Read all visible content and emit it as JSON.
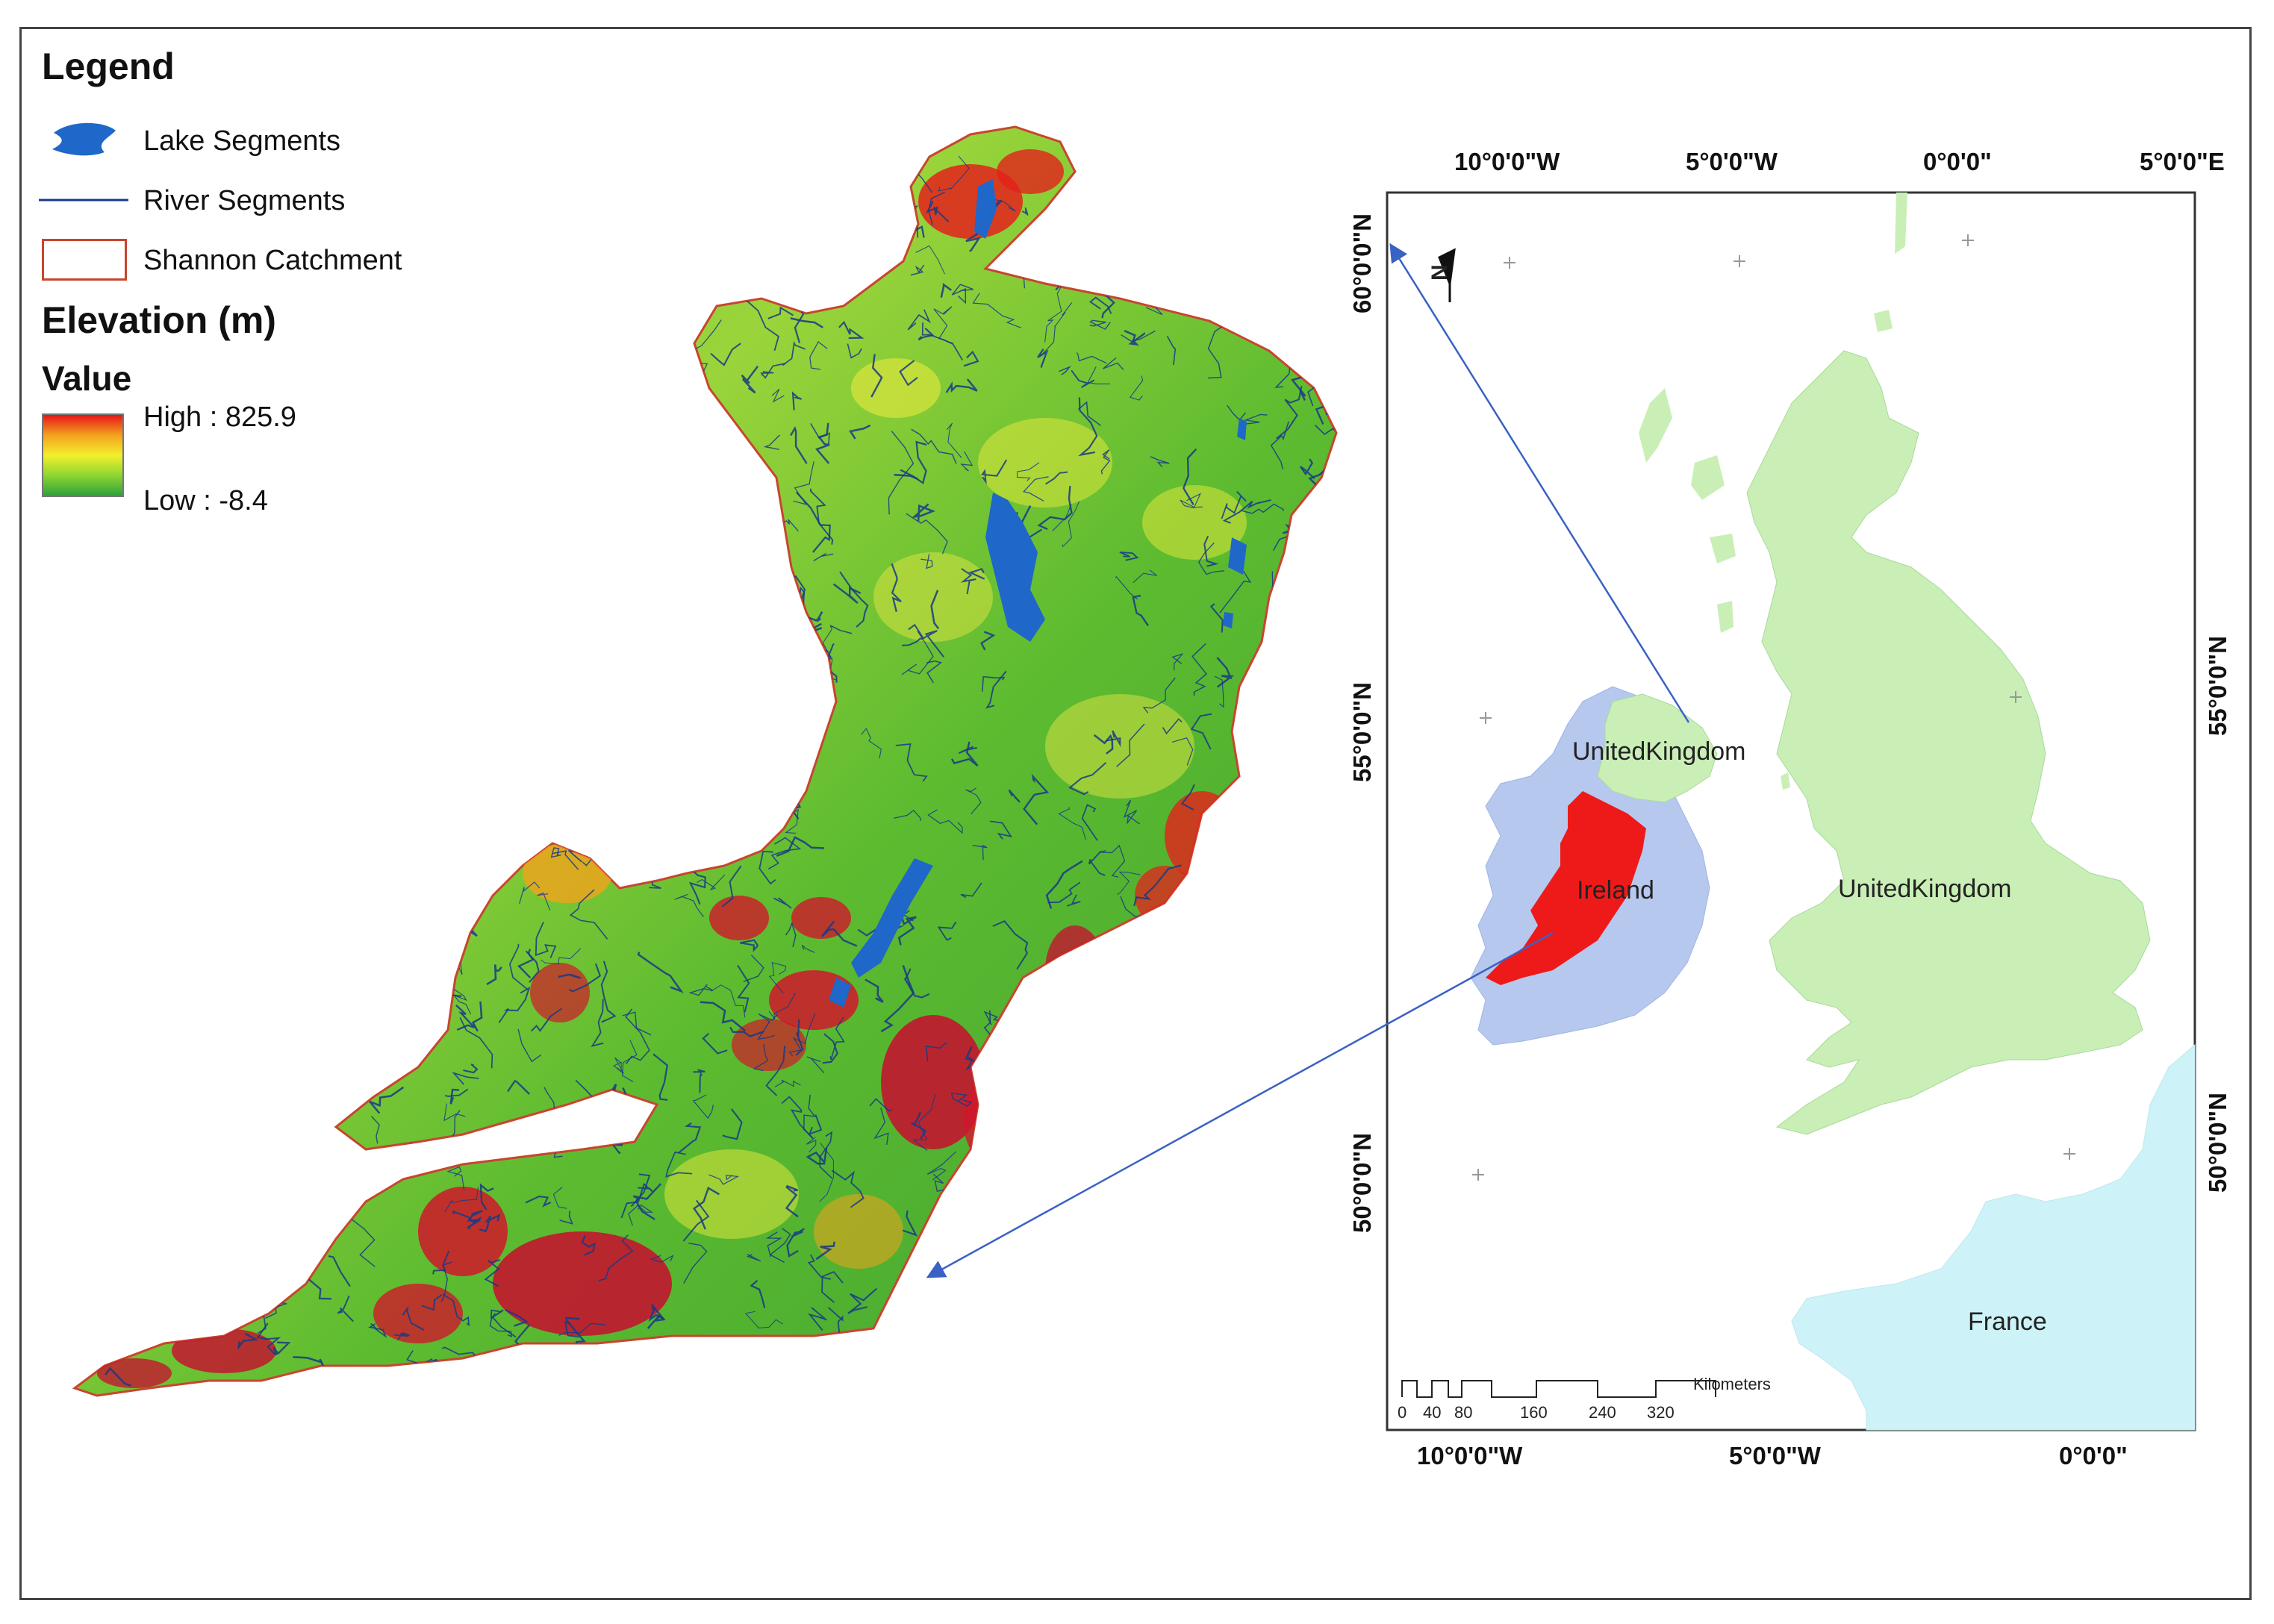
{
  "legend": {
    "title": "Legend",
    "items": {
      "lake": "Lake Segments",
      "river": "River Segments",
      "catchment": "Shannon Catchment"
    },
    "elevation_title": "Elevation (m)",
    "value_label": "Value",
    "high": "High : 825.9",
    "low": "Low : -8.4"
  },
  "colors": {
    "lake": "#1f67c9",
    "river": "#173a86",
    "catchment_outline": "#c8452f",
    "ireland_fill": "#b7c8ef",
    "uk_fill": "#c9efb6",
    "france_fill": "#cdf3f8",
    "shannon_fill": "#ee1a1a",
    "arrow": "#3a62c4"
  },
  "inset": {
    "top_longitudes": [
      "10°0'0\"W",
      "5°0'0\"W",
      "0°0'0\"",
      "5°0'0\"E"
    ],
    "bottom_longitudes": [
      "10°0'0\"W",
      "5°0'0\"W",
      "0°0'0\""
    ],
    "left_latitudes": [
      "60°0'0\"N",
      "55°0'0\"N",
      "50°0'0\"N"
    ],
    "right_latitudes": [
      "55°0'0\"N",
      "50°0'0\"N"
    ],
    "labels": {
      "uk_north": "UnitedKingdom",
      "uk_main": "UnitedKingdom",
      "ireland": "Ireland",
      "france": "France"
    },
    "north_arrow": "N",
    "scale_bar": {
      "ticks": [
        "0",
        "40",
        "80",
        "160",
        "240",
        "320"
      ],
      "unit": "Kilometers"
    }
  }
}
